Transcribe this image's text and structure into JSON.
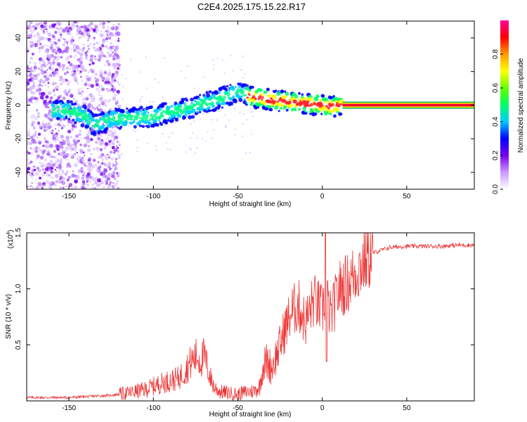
{
  "page": {
    "title": "C2E4.2025.175.15.22.R17"
  },
  "chart_data": [
    {
      "type": "heatmap",
      "xlabel": "Height of straight line (km)",
      "ylabel": "Frequency (Hz)",
      "xlim": [
        -175,
        90
      ],
      "ylim": [
        -50,
        50
      ],
      "xticks": [
        -150,
        -100,
        -50,
        0,
        50
      ],
      "yticks": [
        -40,
        -20,
        0,
        20,
        40
      ],
      "colorbar": {
        "label": "Normalized spectral amplitude",
        "range": [
          0,
          1
        ],
        "ticks": [
          "0.0",
          "0.2",
          "0.4",
          "0.6",
          "0.8"
        ],
        "colors": [
          "#ffffff",
          "#cc99ff",
          "#7700ee",
          "#0000ff",
          "#00ccff",
          "#00ff66",
          "#66ff00",
          "#ffff00",
          "#ff9900",
          "#ff0000",
          "#ff0099"
        ]
      },
      "ridge": {
        "x": [
          -150,
          -140,
          -135,
          -125,
          -118,
          -100,
          -90,
          -80,
          -70,
          -60,
          -50,
          -42,
          -35,
          -30,
          -20,
          -10,
          0,
          5,
          12,
          30,
          50,
          70,
          90
        ],
        "y": [
          -3,
          -7,
          -12,
          -8,
          -8,
          -7,
          -4,
          -2,
          1,
          4,
          8,
          5,
          4,
          3,
          2,
          1,
          0,
          -1,
          0,
          0,
          0,
          0,
          0
        ]
      },
      "noise_region_x": [
        -175,
        -120
      ]
    },
    {
      "type": "line",
      "xlabel": "Height of straight line (km)",
      "ylabel": "SNR (10 * v/v)",
      "yscale_label": "(x10",
      "yscale_exp": "4",
      "xlim": [
        -175,
        90
      ],
      "ylim": [
        0,
        1.5
      ],
      "xticks": [
        -150,
        -100,
        -50,
        0,
        50
      ],
      "yticks": [
        "0.5",
        "1.0",
        "1.5"
      ],
      "color": "#ee3333",
      "series": [
        {
          "x": [
            -175,
            -150,
            -125,
            -115,
            -105,
            -95,
            -85,
            -80,
            -76,
            -74,
            -72,
            -70,
            -68,
            -66,
            -64,
            -60,
            -55,
            -50,
            -45,
            -40,
            -37,
            -35,
            -33,
            -30,
            -26,
            -22,
            -18,
            -14,
            -10,
            -5,
            0,
            2,
            5,
            10,
            15,
            20,
            25,
            30,
            40,
            50,
            60,
            70,
            80,
            90
          ],
          "y": [
            0.03,
            0.03,
            0.05,
            0.07,
            0.1,
            0.16,
            0.2,
            0.3,
            0.38,
            0.4,
            0.36,
            0.4,
            0.3,
            0.2,
            0.12,
            0.08,
            0.07,
            0.06,
            0.08,
            0.09,
            0.13,
            0.32,
            0.35,
            0.3,
            0.45,
            0.65,
            0.8,
            0.85,
            0.7,
            0.9,
            0.8,
            0.95,
            0.75,
            1.0,
            1.05,
            1.15,
            1.25,
            1.32,
            1.37,
            1.38,
            1.38,
            1.38,
            1.39,
            1.39
          ]
        }
      ]
    }
  ]
}
